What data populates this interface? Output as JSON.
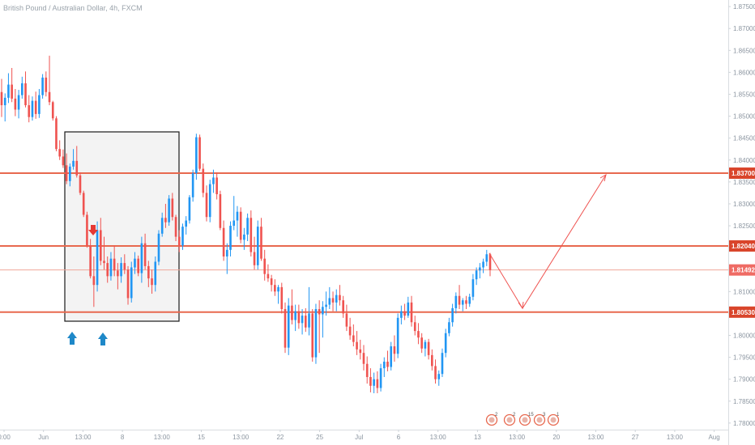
{
  "chart_data": {
    "type": "candlestick",
    "title": "British Pound / Australian Dollar, 4h, FXCM",
    "y_ticks": [
      "1.87500",
      "1.87000",
      "1.86500",
      "1.86000",
      "1.85500",
      "1.85000",
      "1.84500",
      "1.84000",
      "1.83500",
      "1.83000",
      "1.82500",
      "1.82000",
      "1.81500",
      "1.81000",
      "1.80500",
      "1.80000",
      "1.79500",
      "1.79000",
      "1.78500",
      "1.78000"
    ],
    "x_ticks": [
      "0:00",
      "Jun",
      "13:00",
      "8",
      "13:00",
      "15",
      "13:00",
      "22",
      "25",
      "Jul",
      "6",
      "13:00",
      "13",
      "13:00",
      "20",
      "13:00",
      "27",
      "13:00",
      "Aug"
    ],
    "ylim": [
      1.7785,
      1.8765
    ],
    "levels": [
      {
        "value": 1.837,
        "label": "1.83700"
      },
      {
        "value": 1.8204,
        "label": "1.82040"
      },
      {
        "value": 1.8053,
        "label": "1.80530"
      }
    ],
    "current_price": {
      "value": 1.81492,
      "label": "1.81492"
    },
    "up_color": "#2196f3",
    "down_color": "#ef5350",
    "level_color": "#e8694f",
    "candles_ohlc": [
      [
        1.8555,
        1.8585,
        1.8498,
        1.8525
      ],
      [
        1.8525,
        1.8552,
        1.8488,
        1.8542
      ],
      [
        1.8542,
        1.8598,
        1.853,
        1.8572
      ],
      [
        1.8572,
        1.861,
        1.8532,
        1.854
      ],
      [
        1.854,
        1.8562,
        1.85,
        1.8515
      ],
      [
        1.8515,
        1.856,
        1.8495,
        1.8548
      ],
      [
        1.8548,
        1.859,
        1.854,
        1.8575
      ],
      [
        1.8575,
        1.8602,
        1.852,
        1.8525
      ],
      [
        1.8525,
        1.8548,
        1.8486,
        1.8498
      ],
      [
        1.8498,
        1.8545,
        1.849,
        1.8535
      ],
      [
        1.8535,
        1.8556,
        1.8494,
        1.8505
      ],
      [
        1.8505,
        1.8562,
        1.8496,
        1.8548
      ],
      [
        1.8548,
        1.8596,
        1.854,
        1.8588
      ],
      [
        1.8588,
        1.8602,
        1.8545,
        1.8555
      ],
      [
        1.8555,
        1.8638,
        1.8525,
        1.8532
      ],
      [
        1.8532,
        1.8535,
        1.849,
        1.8495
      ],
      [
        1.8495,
        1.85,
        1.842,
        1.8425
      ],
      [
        1.8425,
        1.8445,
        1.84,
        1.8408
      ],
      [
        1.8408,
        1.8424,
        1.8382,
        1.8388
      ],
      [
        1.8388,
        1.8415,
        1.8345,
        1.8352
      ],
      [
        1.8352,
        1.8392,
        1.834,
        1.8385
      ],
      [
        1.8385,
        1.8425,
        1.8378,
        1.8398
      ],
      [
        1.8398,
        1.8432,
        1.836,
        1.8365
      ],
      [
        1.8365,
        1.8372,
        1.832,
        1.8325
      ],
      [
        1.8325,
        1.833,
        1.827,
        1.8275
      ],
      [
        1.8275,
        1.8282,
        1.82,
        1.8205
      ],
      [
        1.8205,
        1.822,
        1.813,
        1.8135
      ],
      [
        1.8135,
        1.818,
        1.8065,
        1.8115
      ],
      [
        1.8115,
        1.826,
        1.81,
        1.824
      ],
      [
        1.824,
        1.8268,
        1.816,
        1.817
      ],
      [
        1.817,
        1.8225,
        1.815,
        1.8165
      ],
      [
        1.8165,
        1.818,
        1.812,
        1.8135
      ],
      [
        1.8135,
        1.819,
        1.8125,
        1.8175
      ],
      [
        1.8175,
        1.8205,
        1.8135,
        1.8148
      ],
      [
        1.8148,
        1.8165,
        1.8105,
        1.8135
      ],
      [
        1.8135,
        1.8178,
        1.812,
        1.8165
      ],
      [
        1.8165,
        1.8185,
        1.814,
        1.815
      ],
      [
        1.815,
        1.8158,
        1.807,
        1.8085
      ],
      [
        1.8085,
        1.8168,
        1.8075,
        1.8155
      ],
      [
        1.8155,
        1.819,
        1.814,
        1.8175
      ],
      [
        1.8175,
        1.8182,
        1.8135,
        1.8142
      ],
      [
        1.8142,
        1.8225,
        1.812,
        1.821
      ],
      [
        1.821,
        1.8232,
        1.815,
        1.8158
      ],
      [
        1.8158,
        1.817,
        1.811,
        1.813
      ],
      [
        1.813,
        1.815,
        1.8095,
        1.8115
      ],
      [
        1.8115,
        1.818,
        1.81,
        1.8168
      ],
      [
        1.8168,
        1.824,
        1.816,
        1.8232
      ],
      [
        1.8232,
        1.828,
        1.8225,
        1.8268
      ],
      [
        1.8268,
        1.83,
        1.8245,
        1.8258
      ],
      [
        1.8258,
        1.832,
        1.825,
        1.8312
      ],
      [
        1.8312,
        1.8325,
        1.8262,
        1.827
      ],
      [
        1.827,
        1.8275,
        1.8215,
        1.8225
      ],
      [
        1.8225,
        1.824,
        1.819,
        1.8205
      ],
      [
        1.8205,
        1.8255,
        1.8195,
        1.8248
      ],
      [
        1.8248,
        1.8272,
        1.823,
        1.8262
      ],
      [
        1.8262,
        1.832,
        1.8255,
        1.8315
      ],
      [
        1.8315,
        1.8378,
        1.8305,
        1.837
      ],
      [
        1.837,
        1.846,
        1.8355,
        1.8452
      ],
      [
        1.8452,
        1.8458,
        1.8375,
        1.838
      ],
      [
        1.838,
        1.8392,
        1.8315,
        1.8325
      ],
      [
        1.8325,
        1.8342,
        1.826,
        1.827
      ],
      [
        1.827,
        1.8355,
        1.8258,
        1.8345
      ],
      [
        1.8345,
        1.8378,
        1.8325,
        1.836
      ],
      [
        1.836,
        1.8372,
        1.831,
        1.8322
      ],
      [
        1.8322,
        1.833,
        1.824,
        1.8245
      ],
      [
        1.8245,
        1.8262,
        1.817,
        1.818
      ],
      [
        1.818,
        1.821,
        1.814,
        1.8195
      ],
      [
        1.8195,
        1.826,
        1.818,
        1.825
      ],
      [
        1.825,
        1.8318,
        1.824,
        1.8262
      ],
      [
        1.8262,
        1.8295,
        1.8225,
        1.8282
      ],
      [
        1.8282,
        1.8292,
        1.821,
        1.8218
      ],
      [
        1.8218,
        1.8245,
        1.8195,
        1.823
      ],
      [
        1.823,
        1.8278,
        1.8215,
        1.8268
      ],
      [
        1.8268,
        1.8285,
        1.818,
        1.819
      ],
      [
        1.819,
        1.8225,
        1.815,
        1.816
      ],
      [
        1.816,
        1.8262,
        1.815,
        1.8248
      ],
      [
        1.8248,
        1.8268,
        1.817,
        1.8175
      ],
      [
        1.8175,
        1.8195,
        1.8125,
        1.814
      ],
      [
        1.814,
        1.8162,
        1.8122,
        1.813
      ],
      [
        1.813,
        1.8138,
        1.81,
        1.8115
      ],
      [
        1.8115,
        1.8128,
        1.809,
        1.81
      ],
      [
        1.81,
        1.8115,
        1.8072,
        1.811
      ],
      [
        1.811,
        1.812,
        1.805,
        1.806
      ],
      [
        1.806,
        1.8075,
        1.796,
        1.7972
      ],
      [
        1.7972,
        1.8085,
        1.7955,
        1.8068
      ],
      [
        1.8068,
        1.8105,
        1.8025,
        1.8035
      ],
      [
        1.8035,
        1.807,
        1.801,
        1.8055
      ],
      [
        1.8055,
        1.807,
        1.8015,
        1.8028
      ],
      [
        1.8028,
        1.806,
        1.8002,
        1.8045
      ],
      [
        1.8045,
        1.8062,
        1.8008,
        1.8018
      ],
      [
        1.8018,
        1.811,
        1.8,
        1.805
      ],
      [
        1.805,
        1.806,
        1.794,
        1.795
      ],
      [
        1.795,
        1.8072,
        1.7935,
        1.806
      ],
      [
        1.806,
        1.808,
        1.796,
        1.8048
      ],
      [
        1.8048,
        1.8078,
        1.7995,
        1.8065
      ],
      [
        1.8065,
        1.81,
        1.8045,
        1.807
      ],
      [
        1.807,
        1.811,
        1.806,
        1.8085
      ],
      [
        1.8085,
        1.81,
        1.8055,
        1.8075
      ],
      [
        1.8075,
        1.8105,
        1.8055,
        1.8092
      ],
      [
        1.8092,
        1.8115,
        1.8068,
        1.808
      ],
      [
        1.808,
        1.809,
        1.804,
        1.805
      ],
      [
        1.805,
        1.807,
        1.801,
        1.802
      ],
      [
        1.802,
        1.804,
        1.799,
        1.8
      ],
      [
        1.8,
        1.8025,
        1.7975,
        1.7985
      ],
      [
        1.7985,
        1.801,
        1.7955,
        1.7968
      ],
      [
        1.7968,
        1.799,
        1.7945,
        1.796
      ],
      [
        1.796,
        1.7978,
        1.792,
        1.7935
      ],
      [
        1.7935,
        1.7952,
        1.789,
        1.7905
      ],
      [
        1.7905,
        1.7925,
        1.787,
        1.7885
      ],
      [
        1.7885,
        1.7915,
        1.7868,
        1.79
      ],
      [
        1.79,
        1.7918,
        1.7868,
        1.788
      ],
      [
        1.788,
        1.7935,
        1.7872,
        1.7925
      ],
      [
        1.7925,
        1.795,
        1.7905,
        1.794
      ],
      [
        1.794,
        1.7965,
        1.7918,
        1.7928
      ],
      [
        1.7928,
        1.7985,
        1.792,
        1.7975
      ],
      [
        1.7975,
        1.8,
        1.794,
        1.7958
      ],
      [
        1.7958,
        1.805,
        1.7948,
        1.804
      ],
      [
        1.804,
        1.8068,
        1.8025,
        1.8055
      ],
      [
        1.8055,
        1.8072,
        1.8035,
        1.8045
      ],
      [
        1.8045,
        1.8088,
        1.804,
        1.8075
      ],
      [
        1.8075,
        1.809,
        1.802,
        1.803
      ],
      [
        1.803,
        1.8045,
        1.8,
        1.801
      ],
      [
        1.801,
        1.8028,
        1.798,
        1.7995
      ],
      [
        1.7995,
        1.8005,
        1.796,
        1.797
      ],
      [
        1.797,
        1.799,
        1.7952,
        1.7985
      ],
      [
        1.7985,
        1.7992,
        1.7945,
        1.7955
      ],
      [
        1.7955,
        1.7968,
        1.792,
        1.793
      ],
      [
        1.793,
        1.7945,
        1.789,
        1.79
      ],
      [
        1.79,
        1.792,
        1.7885,
        1.7912
      ],
      [
        1.7912,
        1.797,
        1.7905,
        1.796
      ],
      [
        1.796,
        1.8015,
        1.795,
        1.8005
      ],
      [
        1.8005,
        1.804,
        1.7998,
        1.803
      ],
      [
        1.803,
        1.8072,
        1.802,
        1.8062
      ],
      [
        1.8062,
        1.8098,
        1.805,
        1.809
      ],
      [
        1.809,
        1.8115,
        1.806,
        1.807
      ],
      [
        1.807,
        1.8085,
        1.8055,
        1.808
      ],
      [
        1.808,
        1.809,
        1.806,
        1.8072
      ],
      [
        1.8072,
        1.8095,
        1.8065,
        1.8088
      ],
      [
        1.8088,
        1.814,
        1.808,
        1.8128
      ],
      [
        1.8128,
        1.8155,
        1.8115,
        1.8148
      ],
      [
        1.8148,
        1.8165,
        1.813,
        1.8155
      ],
      [
        1.8155,
        1.8175,
        1.8142,
        1.8168
      ],
      [
        1.8168,
        1.8195,
        1.8158,
        1.8185
      ],
      [
        1.8185,
        1.8188,
        1.8135,
        1.8149
      ]
    ],
    "events": [
      {
        "label": "2",
        "color": "#e8694f"
      },
      {
        "label": "2",
        "color": "#e8694f"
      },
      {
        "label": "15",
        "color": "#e8694f"
      },
      {
        "label": "3",
        "color": "#e8694f"
      },
      {
        "label": "1",
        "color": "#e8694f"
      }
    ]
  }
}
